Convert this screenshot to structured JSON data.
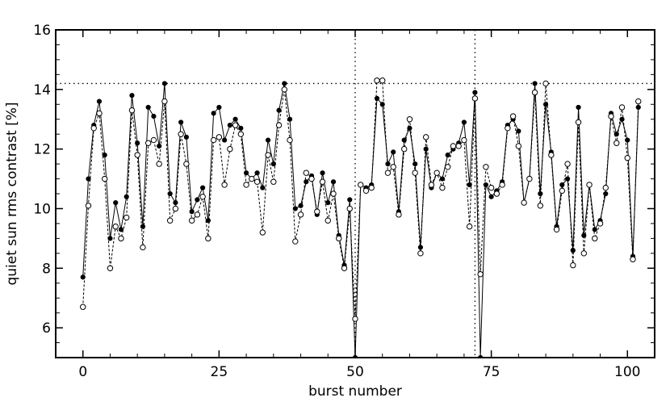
{
  "chart_data": {
    "type": "line",
    "title": "",
    "xlabel": "burst number",
    "ylabel": "quiet sun rms contrast [%]",
    "xlim": [
      -5,
      105
    ],
    "ylim": [
      5,
      16
    ],
    "xticks": [
      0,
      25,
      50,
      75,
      100
    ],
    "yticks": [
      6,
      8,
      10,
      12,
      14,
      16
    ],
    "grid": false,
    "reference_lines": {
      "horizontal": [
        14.2
      ],
      "vertical": [
        50,
        72
      ]
    },
    "series": [
      {
        "marker": "filled-circle",
        "x": [
          0,
          1,
          2,
          3,
          4,
          5,
          6,
          7,
          8,
          9,
          10,
          11,
          12,
          13,
          14,
          15,
          16,
          17,
          18,
          19,
          20,
          21,
          22,
          23,
          24,
          25,
          26,
          27,
          28,
          29,
          30,
          31,
          32,
          33,
          34,
          35,
          36,
          37,
          38,
          39,
          40,
          41,
          42,
          43,
          44,
          45,
          46,
          47,
          48,
          49,
          50,
          51,
          52,
          53,
          54,
          55,
          56,
          57,
          58,
          59,
          60,
          61,
          62,
          63,
          64,
          65,
          66,
          67,
          68,
          69,
          70,
          71,
          72,
          73,
          74,
          75,
          76,
          77,
          78,
          79,
          80,
          81,
          82,
          83,
          84,
          85,
          86,
          87,
          88,
          89,
          90,
          91,
          92,
          93,
          94,
          95,
          96,
          97,
          98,
          99,
          100,
          101,
          102
        ],
        "values": [
          7.7,
          11.0,
          12.8,
          13.6,
          11.8,
          9.0,
          10.2,
          9.3,
          10.4,
          13.8,
          12.2,
          9.4,
          13.4,
          13.1,
          12.1,
          14.2,
          10.5,
          10.2,
          12.9,
          12.4,
          9.9,
          10.3,
          10.7,
          9.6,
          13.2,
          13.4,
          12.3,
          12.8,
          13.0,
          12.7,
          11.2,
          11.0,
          11.2,
          10.7,
          12.3,
          11.5,
          13.3,
          14.2,
          13.0,
          10.0,
          10.1,
          10.9,
          11.1,
          9.8,
          11.2,
          10.2,
          10.9,
          9.1,
          8.1,
          10.3,
          5.0,
          10.8,
          10.7,
          10.8,
          13.7,
          13.5,
          11.5,
          11.9,
          9.9,
          12.3,
          12.7,
          11.5,
          8.7,
          12.0,
          10.7,
          11.2,
          11.0,
          11.8,
          12.0,
          12.2,
          12.9,
          10.8,
          13.9,
          5.0,
          10.8,
          10.4,
          10.6,
          10.9,
          12.8,
          13.0,
          12.6,
          10.2,
          11.0,
          14.2,
          10.5,
          13.5,
          11.9,
          9.4,
          10.8,
          11.0,
          8.6,
          13.4,
          9.1,
          10.8,
          9.3,
          9.6,
          10.5,
          13.2,
          12.5,
          13.0,
          12.3,
          8.4,
          13.4
        ]
      },
      {
        "marker": "open-circle",
        "x": [
          0,
          1,
          2,
          3,
          4,
          5,
          6,
          7,
          8,
          9,
          10,
          11,
          12,
          13,
          14,
          15,
          16,
          17,
          18,
          19,
          20,
          21,
          22,
          23,
          24,
          25,
          26,
          27,
          28,
          29,
          30,
          31,
          32,
          33,
          34,
          35,
          36,
          37,
          38,
          39,
          40,
          41,
          42,
          43,
          44,
          45,
          46,
          47,
          48,
          49,
          50,
          51,
          52,
          53,
          54,
          55,
          56,
          57,
          58,
          59,
          60,
          61,
          62,
          63,
          64,
          65,
          66,
          67,
          68,
          69,
          70,
          71,
          72,
          73,
          74,
          75,
          76,
          77,
          78,
          79,
          80,
          81,
          82,
          83,
          84,
          85,
          86,
          87,
          88,
          89,
          90,
          91,
          92,
          93,
          94,
          95,
          96,
          97,
          98,
          99,
          100,
          101,
          102
        ],
        "values": [
          6.7,
          10.1,
          12.7,
          13.2,
          11.0,
          8.0,
          9.4,
          9.0,
          9.7,
          13.3,
          11.8,
          8.7,
          12.2,
          12.3,
          11.5,
          13.6,
          9.6,
          10.0,
          12.5,
          11.5,
          9.6,
          9.8,
          10.4,
          9.0,
          12.3,
          12.4,
          10.8,
          12.0,
          12.8,
          12.5,
          10.8,
          11.0,
          10.9,
          9.2,
          11.8,
          10.9,
          12.8,
          14.0,
          12.3,
          8.9,
          9.8,
          11.2,
          11.0,
          9.9,
          10.9,
          9.6,
          10.5,
          9.0,
          8.0,
          10.0,
          6.3,
          10.8,
          10.6,
          10.7,
          14.3,
          14.3,
          11.2,
          11.4,
          9.8,
          12.0,
          13.0,
          11.2,
          8.5,
          12.4,
          10.8,
          11.2,
          10.7,
          11.4,
          12.1,
          12.1,
          12.3,
          9.4,
          13.7,
          7.8,
          11.4,
          10.7,
          10.5,
          10.8,
          12.7,
          13.1,
          12.1,
          10.2,
          11.0,
          13.9,
          10.1,
          14.2,
          11.8,
          9.3,
          10.6,
          11.5,
          8.1,
          12.9,
          8.5,
          10.8,
          9.0,
          9.5,
          10.7,
          13.1,
          12.2,
          13.4,
          11.7,
          8.3,
          13.6
        ]
      }
    ]
  }
}
